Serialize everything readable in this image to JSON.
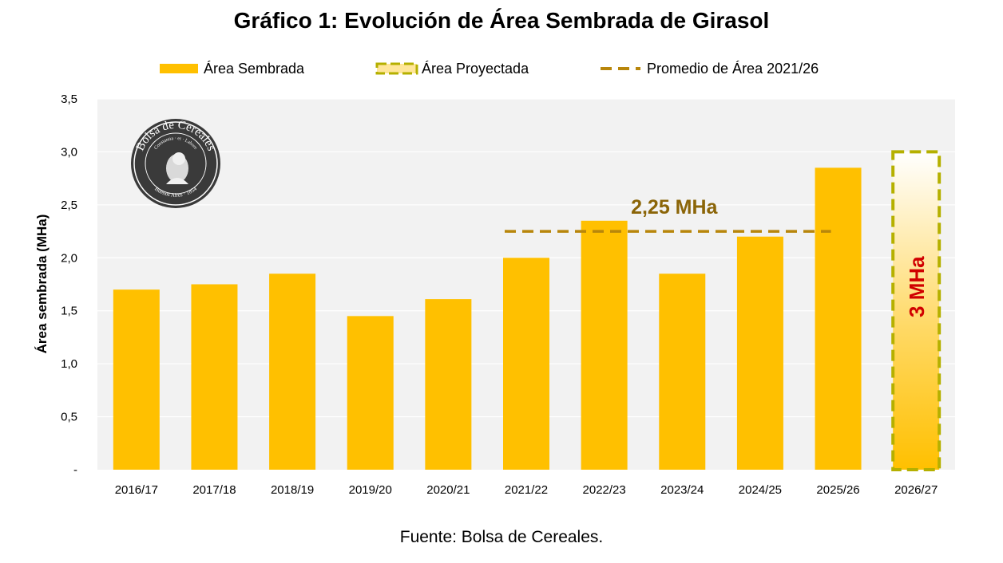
{
  "chart_data": {
    "type": "bar",
    "title": "Gráfico 1: Evolución de Área Sembrada de Girasol",
    "ylabel": "Área sembrada (MHa)",
    "xlabel": "",
    "ylim": [
      0,
      3.5
    ],
    "yticks": [
      "-",
      "0,5",
      "1,0",
      "1,5",
      "2,0",
      "2,5",
      "3,0",
      "3,5"
    ],
    "categories": [
      "2016/17",
      "2017/18",
      "2018/19",
      "2019/20",
      "2020/21",
      "2021/22",
      "2022/23",
      "2023/24",
      "2024/25",
      "2025/26",
      "2026/27"
    ],
    "series": [
      {
        "name": "Área Sembrada",
        "values": [
          1.7,
          1.75,
          1.85,
          1.45,
          1.61,
          2.0,
          2.35,
          1.85,
          2.2,
          2.85,
          null
        ],
        "color": "#FFC000"
      },
      {
        "name": "Área Proyectada",
        "values": [
          null,
          null,
          null,
          null,
          null,
          null,
          null,
          null,
          null,
          null,
          3.0
        ],
        "color": "#B5B000"
      },
      {
        "name": "Promedio de Área 2021/26",
        "value": 2.25,
        "from": "2021/22",
        "to": "2025/26",
        "color": "#B8860B"
      }
    ],
    "annotations": {
      "average_label": "2,25 MHa",
      "projected_label": "3 MHa"
    },
    "grid": true,
    "legend_position": "top"
  },
  "logo": {
    "text": "Bolsa de Cereales",
    "motto": "Constantia · et · Labore",
    "city": "Buenos Aires · 1854"
  },
  "source": "Fuente: Bolsa de Cereales.",
  "colors": {
    "plot_bg": "#F2F2F2",
    "gridline": "#FFFFFF",
    "bar": "#FFC000",
    "projected_border": "#B5B000",
    "average_line": "#B8860B",
    "average_label": "#8B6508",
    "projected_label": "#D00000"
  }
}
